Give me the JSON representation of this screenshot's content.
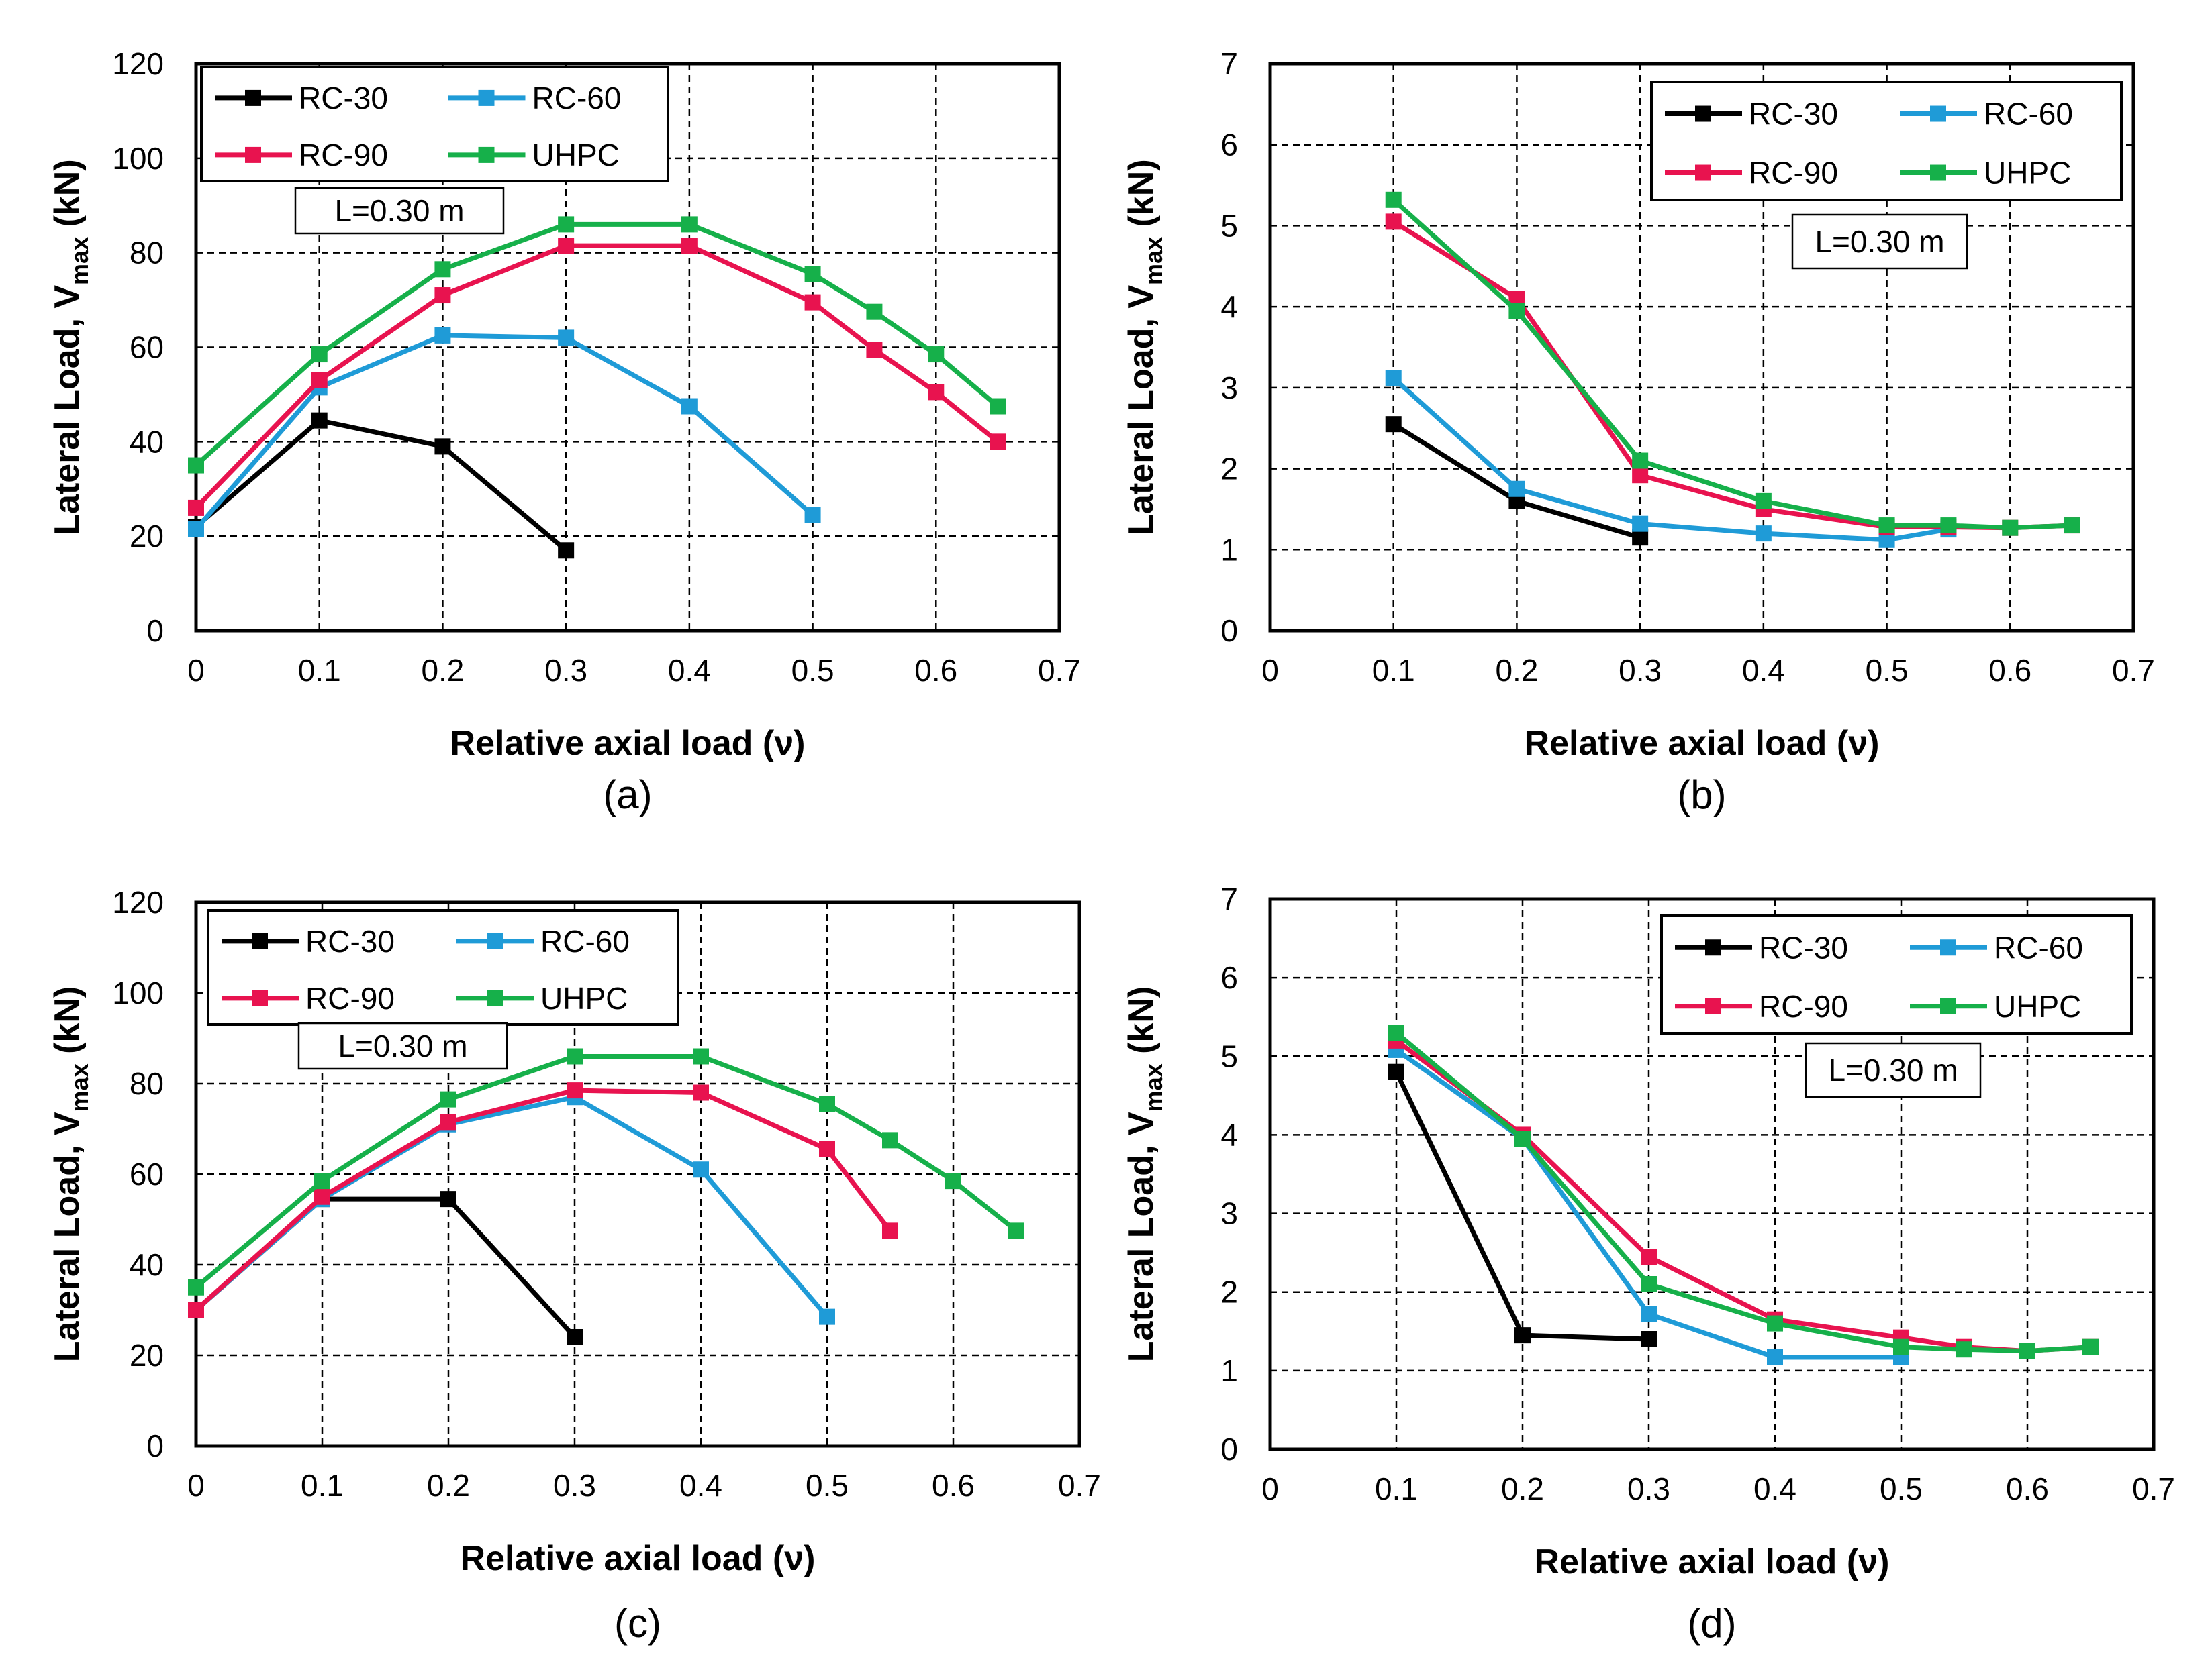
{
  "figure": {
    "xlabel": "Relative axial load (ν)",
    "ylabel_prefix": "Lateral Load, V",
    "ylabel_sub": "max",
    "ylabel_suffix": " (kN)"
  },
  "colors": {
    "RC-30": "#000000",
    "RC-60": "#1f9bd7",
    "RC-90": "#e8134f",
    "UHPC": "#16b04a"
  },
  "chart_data": [
    {
      "panel": "(a)",
      "type": "line",
      "note": "L=0.30 m",
      "xlim": [
        0,
        0.7
      ],
      "ylim": [
        0,
        120
      ],
      "xticks": [
        "0",
        "0.1",
        "0.2",
        "0.3",
        "0.4",
        "0.5",
        "0.6",
        "0.7"
      ],
      "yticks": [
        "0",
        "20",
        "40",
        "60",
        "80",
        "100",
        "120"
      ],
      "grid": true,
      "legend": "top-left",
      "series": [
        {
          "name": "RC-30",
          "x": [
            0,
            0.1,
            0.2,
            0.3
          ],
          "y": [
            22,
            44.5,
            39,
            17
          ]
        },
        {
          "name": "RC-60",
          "x": [
            0,
            0.1,
            0.2,
            0.3,
            0.4,
            0.5
          ],
          "y": [
            21.5,
            51.5,
            62.5,
            62,
            47.5,
            24.5
          ]
        },
        {
          "name": "RC-90",
          "x": [
            0,
            0.1,
            0.2,
            0.3,
            0.4,
            0.5,
            0.55,
            0.6,
            0.65
          ],
          "y": [
            26,
            53,
            71,
            81.5,
            81.5,
            69.5,
            59.5,
            50.5,
            40
          ]
        },
        {
          "name": "UHPC",
          "x": [
            0,
            0.1,
            0.2,
            0.3,
            0.4,
            0.5,
            0.55,
            0.6,
            0.65
          ],
          "y": [
            35,
            58.5,
            76.5,
            86,
            86,
            75.5,
            67.5,
            58.5,
            47.5
          ]
        }
      ]
    },
    {
      "panel": "(b)",
      "type": "line",
      "note": "L=0.30 m",
      "xlim": [
        0,
        0.7
      ],
      "ylim": [
        0,
        7
      ],
      "xticks": [
        "0",
        "0.1",
        "0.2",
        "0.3",
        "0.4",
        "0.5",
        "0.6",
        "0.7"
      ],
      "yticks": [
        "0",
        "1",
        "2",
        "3",
        "4",
        "5",
        "6",
        "7"
      ],
      "grid": true,
      "legend": "top-right",
      "series": [
        {
          "name": "RC-30",
          "x": [
            0.1,
            0.2,
            0.3
          ],
          "y": [
            2.55,
            1.6,
            1.15
          ]
        },
        {
          "name": "RC-60",
          "x": [
            0.1,
            0.2,
            0.3,
            0.4,
            0.5,
            0.55
          ],
          "y": [
            3.12,
            1.75,
            1.32,
            1.2,
            1.12,
            1.25
          ]
        },
        {
          "name": "RC-90",
          "x": [
            0.1,
            0.2,
            0.3,
            0.4,
            0.5,
            0.55,
            0.6,
            0.65
          ],
          "y": [
            5.05,
            4.1,
            1.92,
            1.5,
            1.28,
            1.28,
            1.27,
            1.3
          ]
        },
        {
          "name": "UHPC",
          "x": [
            0.1,
            0.2,
            0.3,
            0.4,
            0.5,
            0.55,
            0.6,
            0.65
          ],
          "y": [
            5.32,
            3.95,
            2.1,
            1.6,
            1.3,
            1.3,
            1.27,
            1.3
          ]
        }
      ]
    },
    {
      "panel": "(c)",
      "type": "line",
      "note": "L=0.30 m",
      "xlim": [
        0,
        0.7
      ],
      "ylim": [
        0,
        120
      ],
      "xticks": [
        "0",
        "0.1",
        "0.2",
        "0.3",
        "0.4",
        "0.5",
        "0.6",
        "0.7"
      ],
      "yticks": [
        "0",
        "20",
        "40",
        "60",
        "80",
        "100",
        "120"
      ],
      "grid": true,
      "legend": "top-left",
      "series": [
        {
          "name": "RC-30",
          "x": [
            0,
            0.1,
            0.2,
            0.3
          ],
          "y": [
            30,
            54.5,
            54.5,
            24
          ]
        },
        {
          "name": "RC-60",
          "x": [
            0,
            0.1,
            0.2,
            0.3,
            0.4,
            0.5
          ],
          "y": [
            30,
            54.5,
            71,
            77,
            61,
            28.5
          ]
        },
        {
          "name": "RC-90",
          "x": [
            0,
            0.1,
            0.2,
            0.3,
            0.4,
            0.5,
            0.55
          ],
          "y": [
            30,
            55,
            71.5,
            78.5,
            78,
            65.5,
            47.5
          ]
        },
        {
          "name": "UHPC",
          "x": [
            0,
            0.1,
            0.2,
            0.3,
            0.4,
            0.5,
            0.55,
            0.6,
            0.65
          ],
          "y": [
            35,
            58.5,
            76.5,
            86,
            86,
            75.5,
            67.5,
            58.5,
            47.5
          ]
        }
      ]
    },
    {
      "panel": "(d)",
      "type": "line",
      "note": "L=0.30 m",
      "xlim": [
        0,
        0.7
      ],
      "ylim": [
        0,
        7
      ],
      "xticks": [
        "0",
        "0.1",
        "0.2",
        "0.3",
        "0.4",
        "0.5",
        "0.6",
        "0.7"
      ],
      "yticks": [
        "0",
        "1",
        "2",
        "3",
        "4",
        "5",
        "6",
        "7"
      ],
      "grid": true,
      "legend": "top-right",
      "series": [
        {
          "name": "RC-30",
          "x": [
            0.1,
            0.2,
            0.3
          ],
          "y": [
            4.8,
            1.45,
            1.4
          ]
        },
        {
          "name": "RC-60",
          "x": [
            0.1,
            0.2,
            0.3,
            0.4,
            0.5
          ],
          "y": [
            5.08,
            3.95,
            1.72,
            1.17,
            1.17
          ]
        },
        {
          "name": "RC-90",
          "x": [
            0.1,
            0.2,
            0.3,
            0.4,
            0.5,
            0.55,
            0.6,
            0.65
          ],
          "y": [
            5.2,
            4.0,
            2.45,
            1.65,
            1.42,
            1.3,
            1.25,
            1.3
          ]
        },
        {
          "name": "UHPC",
          "x": [
            0.1,
            0.2,
            0.3,
            0.4,
            0.5,
            0.55,
            0.6,
            0.65
          ],
          "y": [
            5.3,
            3.95,
            2.1,
            1.6,
            1.3,
            1.27,
            1.25,
            1.3
          ]
        }
      ]
    }
  ]
}
